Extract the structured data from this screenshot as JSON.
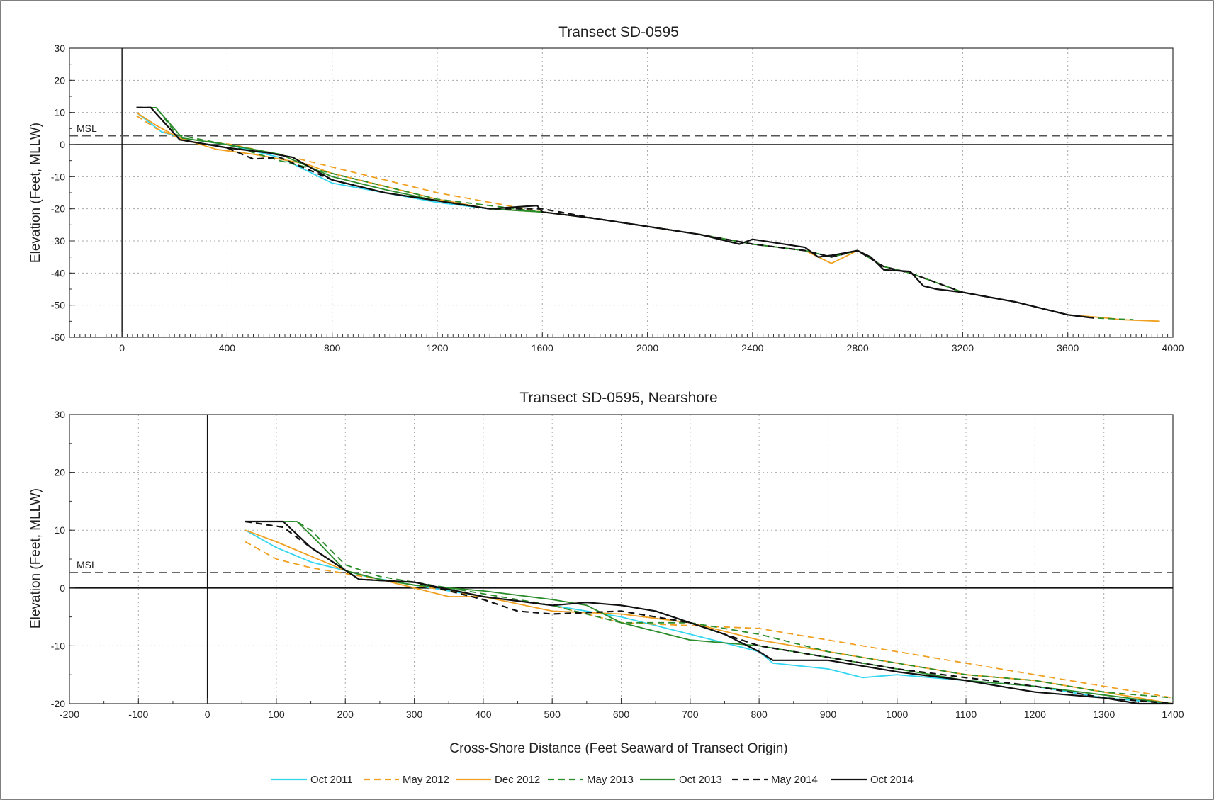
{
  "chart_data": [
    {
      "type": "line",
      "title": "Transect  SD-0595",
      "xlabel": "",
      "ylabel": "Elevation (Feet, MLLW)",
      "xlim": [
        -200,
        4000
      ],
      "ylim": [
        -60,
        30
      ],
      "xticks": [
        0,
        400,
        800,
        1200,
        1600,
        2000,
        2400,
        2800,
        3200,
        3600,
        4000
      ],
      "yticks": [
        30,
        20,
        10,
        0,
        -10,
        -20,
        -30,
        -40,
        -50,
        -60
      ],
      "grid": true,
      "reference_lines": [
        {
          "label": "MSL",
          "y": 2.7
        }
      ],
      "series": [
        {
          "name": "Oct 2011",
          "color": "#33d6f0",
          "dash": "",
          "x": [
            55,
            150,
            230,
            400,
            600,
            800,
            1000,
            1200,
            1400,
            1600,
            1800,
            2000,
            2200,
            2400,
            2600,
            2700,
            2800,
            2900,
            3000,
            3200,
            3400,
            3600,
            3700
          ],
          "y": [
            10,
            4,
            2,
            0,
            -4,
            -12,
            -15,
            -18,
            -20,
            -21,
            -23,
            -25.5,
            -28,
            -31,
            -33,
            -35,
            -33,
            -38,
            -40,
            -46,
            -49,
            -53,
            -54
          ]
        },
        {
          "name": "May 2012",
          "color": "#f0a020",
          "dash": "9,6",
          "x": [
            55,
            130,
            220,
            420,
            650,
            800,
            1000,
            1200,
            1400,
            1600,
            1800,
            2000,
            2200,
            2400,
            2600,
            2700,
            2800,
            2900,
            3000,
            3200,
            3400,
            3600,
            3700
          ],
          "y": [
            9,
            5,
            2,
            0,
            -4,
            -7,
            -11,
            -15,
            -18,
            -21,
            -23,
            -25.5,
            -28,
            -31,
            -33,
            -35,
            -33,
            -38,
            -40,
            -46,
            -49,
            -53,
            -54
          ]
        },
        {
          "name": "Dec 2012",
          "color": "#f0a020",
          "dash": "",
          "x": [
            55,
            130,
            220,
            360,
            500,
            700,
            800,
            1000,
            1200,
            1400,
            1600,
            1800,
            2000,
            2200,
            2400,
            2600,
            2700,
            2800,
            2900,
            3000,
            3200,
            3400,
            3600,
            3750,
            3800,
            3950
          ],
          "y": [
            10,
            6,
            2,
            -1.5,
            -3,
            -6,
            -9,
            -13,
            -17,
            -20,
            -21,
            -23,
            -25.5,
            -28,
            -31,
            -33,
            -37,
            -33,
            -38,
            -40,
            -46,
            -49,
            -53,
            -54,
            -54.5,
            -55
          ]
        },
        {
          "name": "May 2013",
          "color": "#2a8c2a",
          "dash": "9,6",
          "x": [
            55,
            130,
            210,
            400,
            600,
            800,
            1000,
            1200,
            1400,
            1600,
            1800,
            2000,
            2200,
            2400,
            2600,
            2700,
            2800,
            2900,
            3000,
            3200,
            3400,
            3600,
            3700,
            3850
          ],
          "y": [
            11.5,
            11.5,
            3,
            0,
            -5,
            -9,
            -13,
            -17,
            -19,
            -21,
            -23,
            -25.5,
            -28,
            -31,
            -33,
            -35,
            -33,
            -38,
            -40,
            -46,
            -49,
            -53,
            -54,
            -54.5
          ]
        },
        {
          "name": "Oct 2013",
          "color": "#2a8c2a",
          "dash": "",
          "x": [
            55,
            130,
            230,
            400,
            600,
            800,
            1000,
            1200,
            1400,
            1600,
            1800,
            2000,
            2200,
            2400,
            2600,
            2700,
            2800,
            2900,
            3000,
            3200,
            3400,
            3600,
            3700
          ],
          "y": [
            11.5,
            11.5,
            2,
            0,
            -3,
            -10,
            -14,
            -17.5,
            -20,
            -21,
            -23,
            -25.5,
            -28,
            -31,
            -33,
            -35,
            -33,
            -38,
            -40,
            -46,
            -49,
            -53,
            -54
          ]
        },
        {
          "name": "May 2014",
          "color": "#111111",
          "dash": "9,6",
          "x": [
            55,
            110,
            220,
            400,
            500,
            600,
            800,
            1000,
            1200,
            1400,
            1600,
            1800,
            2000,
            2200,
            2400,
            2600,
            2700,
            2800,
            2900,
            3000,
            3200,
            3400,
            3600,
            3700
          ],
          "y": [
            11.5,
            11.5,
            1.5,
            -1,
            -4.5,
            -4,
            -11,
            -15,
            -17.5,
            -20,
            -20,
            -23,
            -25.5,
            -28,
            -31,
            -33,
            -35,
            -33,
            -38,
            -40,
            -46,
            -49,
            -53,
            -54
          ]
        },
        {
          "name": "Oct 2014",
          "color": "#111111",
          "dash": "",
          "x": [
            55,
            110,
            220,
            400,
            550,
            650,
            800,
            1000,
            1200,
            1400,
            1580,
            1600,
            1700,
            1800,
            2000,
            2200,
            2350,
            2400,
            2600,
            2650,
            2700,
            2800,
            2850,
            2900,
            3000,
            3050,
            3100,
            3200,
            3400,
            3600,
            3700
          ],
          "y": [
            11.5,
            11.5,
            1.5,
            -1,
            -2.5,
            -4,
            -11,
            -15,
            -17.5,
            -20,
            -19,
            -21,
            -22,
            -23,
            -25.5,
            -28,
            -31,
            -29.5,
            -32,
            -35,
            -34.5,
            -33,
            -35,
            -39,
            -39.5,
            -44,
            -45,
            -46,
            -49,
            -53,
            -54
          ]
        }
      ]
    },
    {
      "type": "line",
      "title": "Transect  SD-0595, Nearshore",
      "xlabel": "Cross-Shore Distance (Feet Seaward of Transect Origin)",
      "ylabel": "Elevation (Feet, MLLW)",
      "xlim": [
        -200,
        1400
      ],
      "ylim": [
        -20,
        30
      ],
      "xticks": [
        -200,
        -100,
        0,
        100,
        200,
        300,
        400,
        500,
        600,
        700,
        800,
        900,
        1000,
        1100,
        1200,
        1300,
        1400
      ],
      "yticks": [
        30,
        20,
        10,
        0,
        -10,
        -20
      ],
      "grid": true,
      "reference_lines": [
        {
          "label": "MSL",
          "y": 2.7
        }
      ],
      "series": [
        {
          "name": "Oct 2011",
          "color": "#33d6f0",
          "dash": "",
          "x": [
            55,
            100,
            150,
            200,
            230,
            300,
            400,
            500,
            600,
            700,
            800,
            820,
            900,
            950,
            1000,
            1100,
            1200,
            1300,
            1400
          ],
          "y": [
            10,
            7,
            4.5,
            3,
            2,
            0.5,
            -1.5,
            -3,
            -5,
            -8,
            -11,
            -13,
            -14,
            -15.5,
            -15,
            -16,
            -17,
            -19,
            -20
          ]
        },
        {
          "name": "May 2012",
          "color": "#f0a020",
          "dash": "9,6",
          "x": [
            55,
            100,
            150,
            200,
            250,
            300,
            400,
            500,
            600,
            800,
            1000,
            1200,
            1400
          ],
          "y": [
            8,
            5,
            3.5,
            2.5,
            1.5,
            0.5,
            -1.5,
            -3,
            -6,
            -7,
            -11,
            -15,
            -19
          ]
        },
        {
          "name": "Dec 2012",
          "color": "#f0a020",
          "dash": "",
          "x": [
            55,
            100,
            150,
            200,
            250,
            300,
            350,
            400,
            500,
            600,
            700,
            800,
            900,
            1000,
            1100,
            1200,
            1300,
            1400
          ],
          "y": [
            10,
            8,
            5.5,
            3,
            1.5,
            0,
            -1.5,
            -1.5,
            -4,
            -4.5,
            -6,
            -9,
            -11,
            -13,
            -15,
            -16,
            -18,
            -20
          ]
        },
        {
          "name": "May 2013",
          "color": "#2a8c2a",
          "dash": "9,6",
          "x": [
            55,
            130,
            150,
            200,
            250,
            300,
            400,
            500,
            600,
            700,
            800,
            900,
            1000,
            1100,
            1200,
            1300,
            1400
          ],
          "y": [
            11.5,
            11.5,
            10,
            4,
            2,
            1,
            -1,
            -3,
            -6,
            -6,
            -8,
            -11,
            -13,
            -15,
            -16,
            -18,
            -19
          ]
        },
        {
          "name": "Oct 2013",
          "color": "#2a8c2a",
          "dash": "",
          "x": [
            55,
            130,
            160,
            200,
            250,
            300,
            400,
            500,
            550,
            600,
            700,
            800,
            900,
            1000,
            1100,
            1200,
            1300,
            1400
          ],
          "y": [
            11.5,
            11.5,
            8,
            3,
            1.5,
            0.5,
            -0.5,
            -2,
            -3,
            -6,
            -9,
            -10,
            -12,
            -14,
            -16,
            -17,
            -18.5,
            -20
          ]
        },
        {
          "name": "May 2014",
          "color": "#111111",
          "dash": "9,6",
          "x": [
            55,
            110,
            150,
            220,
            300,
            400,
            450,
            500,
            600,
            700,
            800,
            900,
            1000,
            1100,
            1200,
            1300,
            1400
          ],
          "y": [
            11.5,
            10.5,
            7,
            1.5,
            1,
            -2,
            -4,
            -4.5,
            -4,
            -6,
            -10,
            -12,
            -14,
            -15.5,
            -17,
            -19,
            -20
          ]
        },
        {
          "name": "Oct 2014",
          "color": "#111111",
          "dash": "",
          "x": [
            55,
            110,
            150,
            220,
            300,
            400,
            500,
            550,
            600,
            650,
            700,
            750,
            800,
            820,
            900,
            1000,
            1100,
            1200,
            1300,
            1350,
            1400
          ],
          "y": [
            11.5,
            11.5,
            7,
            1.5,
            1,
            -1.5,
            -3,
            -2.5,
            -3,
            -4,
            -6,
            -8,
            -11,
            -12.5,
            -12.5,
            -14.5,
            -16,
            -18,
            -19,
            -20,
            -20
          ]
        }
      ]
    }
  ]
}
